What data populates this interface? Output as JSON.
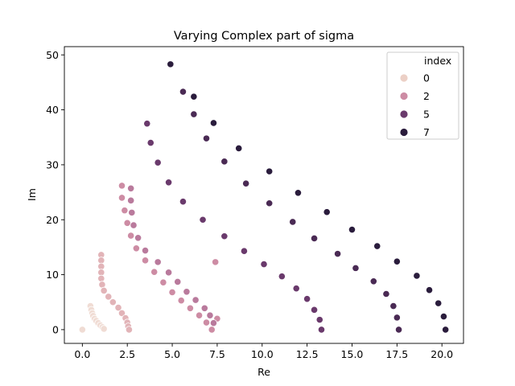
{
  "chart_data": {
    "type": "scatter",
    "title": "Varying Complex part of sigma",
    "xlabel": "Re",
    "ylabel": "Im",
    "xlim": [
      -1.0,
      21.2
    ],
    "ylim": [
      -2.5,
      51.5
    ],
    "xticks": [
      0.0,
      2.5,
      5.0,
      7.5,
      10.0,
      12.5,
      15.0,
      17.5,
      20.0
    ],
    "xtick_labels": [
      "0.0",
      "2.5",
      "5.0",
      "7.5",
      "10.0",
      "12.5",
      "15.0",
      "17.5",
      "20.0"
    ],
    "yticks": [
      0,
      10,
      20,
      30,
      40,
      50
    ],
    "ytick_labels": [
      "0",
      "10",
      "20",
      "30",
      "40",
      "50"
    ],
    "grid": false,
    "legend": {
      "title": "index",
      "placement": "top-right",
      "entries": [
        {
          "label": "0",
          "color": "#ecd0c6"
        },
        {
          "label": "2",
          "color": "#cd8ca4"
        },
        {
          "label": "5",
          "color": "#6a3a6c"
        },
        {
          "label": "7",
          "color": "#2a1c3c"
        }
      ]
    },
    "point_edge_color": "#ffffff",
    "series": [
      {
        "color": "#f0dcd4",
        "x": [
          0.0,
          0.45,
          0.5,
          0.55,
          0.6,
          0.68,
          0.77,
          0.88,
          1.0,
          1.12,
          1.2
        ],
        "y": [
          0.0,
          4.3,
          3.6,
          3.0,
          2.5,
          2.0,
          1.6,
          1.2,
          0.8,
          0.45,
          0.15
        ]
      },
      {
        "color": "#e2b4b8",
        "x": [
          1.05,
          1.05,
          1.05,
          1.05,
          1.05,
          1.1,
          1.2,
          1.45,
          1.7,
          2.0,
          2.2,
          2.4,
          2.5,
          2.55,
          2.6
        ],
        "y": [
          13.6,
          12.6,
          11.5,
          10.4,
          9.3,
          8.2,
          7.1,
          6.0,
          5.0,
          4.0,
          3.0,
          2.1,
          1.3,
          0.6,
          0.0
        ]
      },
      {
        "color": "#cd8ca4",
        "x": [
          2.2,
          2.2,
          2.35,
          2.5,
          2.7,
          3.0,
          3.5,
          4.0,
          4.5,
          5.0,
          5.5,
          6.0,
          6.5,
          6.9,
          7.2,
          7.4,
          7.5
        ],
        "y": [
          26.2,
          24.0,
          21.7,
          19.4,
          17.1,
          14.8,
          12.6,
          10.5,
          8.6,
          6.8,
          5.3,
          3.9,
          2.6,
          1.3,
          0.0,
          12.3,
          2.0
        ]
      },
      {
        "color": "#b97a9c",
        "x": [
          2.7,
          2.7,
          2.75,
          2.85,
          3.1,
          3.5,
          4.2,
          4.8,
          5.3,
          5.8,
          6.3,
          6.8,
          7.1,
          7.3
        ],
        "y": [
          25.7,
          23.5,
          21.3,
          19.0,
          16.7,
          14.4,
          12.3,
          10.4,
          8.7,
          6.9,
          5.4,
          3.9,
          2.6,
          1.2
        ]
      },
      {
        "color": "#6a3a6c",
        "x": [
          3.6,
          3.8,
          4.2,
          4.8,
          5.6,
          6.7,
          7.9,
          9.0,
          10.1,
          11.1,
          11.9,
          12.5,
          12.9,
          13.2,
          13.3
        ],
        "y": [
          37.5,
          34.0,
          30.4,
          26.8,
          23.3,
          20.0,
          17.0,
          14.3,
          11.9,
          9.7,
          7.5,
          5.6,
          3.6,
          1.8,
          0.0
        ]
      },
      {
        "color": "#4a2a54",
        "x": [
          5.6,
          6.2,
          6.9,
          7.9,
          9.1,
          10.4,
          11.7,
          12.9,
          14.2,
          15.2,
          16.2,
          16.9,
          17.3,
          17.5,
          17.6
        ],
        "y": [
          43.3,
          39.2,
          34.8,
          30.6,
          26.6,
          23.0,
          19.6,
          16.6,
          13.8,
          11.2,
          8.8,
          6.5,
          4.3,
          2.2,
          0.0
        ]
      },
      {
        "color": "#2a1c3c",
        "x": [
          4.9,
          6.2,
          7.3,
          8.7,
          10.4,
          12.0,
          13.6,
          15.0,
          16.4,
          17.5,
          18.6,
          19.3,
          19.8,
          20.1,
          20.2
        ],
        "y": [
          48.3,
          42.4,
          37.6,
          33.0,
          28.8,
          24.9,
          21.4,
          18.2,
          15.2,
          12.4,
          9.8,
          7.2,
          4.8,
          2.4,
          0.0
        ]
      }
    ]
  }
}
